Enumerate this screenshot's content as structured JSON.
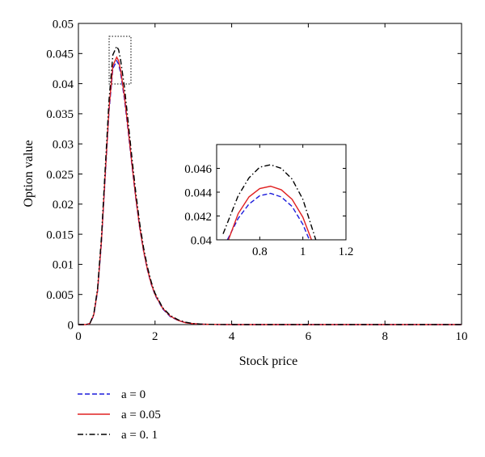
{
  "chart_data": [
    {
      "type": "line",
      "title": "",
      "xlabel": "Stock price",
      "ylabel": "Option value",
      "xlim": [
        0,
        10
      ],
      "ylim": [
        0,
        0.05
      ],
      "xticks": [
        "0",
        "2",
        "4",
        "6",
        "8",
        "10"
      ],
      "yticks": [
        "0",
        "0.005",
        "0.01",
        "0.015",
        "0.02",
        "0.025",
        "0.03",
        "0.035",
        "0.04",
        "0.045",
        "0.05"
      ],
      "grid": false,
      "legend_position": "below",
      "series": [
        {
          "name": "a = 0",
          "color": "#1a1adb",
          "style": "dashed",
          "x": [
            0,
            0.2,
            0.3,
            0.4,
            0.5,
            0.6,
            0.7,
            0.8,
            0.9,
            1.0,
            1.05,
            1.1,
            1.2,
            1.3,
            1.4,
            1.5,
            1.6,
            1.7,
            1.8,
            1.9,
            2.0,
            2.2,
            2.4,
            2.6,
            2.8,
            3.0,
            3.2,
            3.5,
            4.0,
            5.0,
            6.0,
            8.0,
            10.0
          ],
          "y": [
            0,
            0,
            0.0002,
            0.0015,
            0.0055,
            0.0135,
            0.0245,
            0.0355,
            0.0425,
            0.0438,
            0.0432,
            0.0418,
            0.0375,
            0.032,
            0.0262,
            0.0208,
            0.016,
            0.0122,
            0.0091,
            0.0067,
            0.0049,
            0.0026,
            0.0013,
            0.0007,
            0.0003,
            0.00015,
            7e-05,
            2e-05,
            0,
            0,
            0,
            0,
            0
          ]
        },
        {
          "name": "a = 0.05",
          "color": "#e02020",
          "style": "solid",
          "x": [
            0,
            0.2,
            0.3,
            0.4,
            0.5,
            0.6,
            0.7,
            0.8,
            0.9,
            1.0,
            1.05,
            1.1,
            1.2,
            1.3,
            1.4,
            1.5,
            1.6,
            1.7,
            1.8,
            1.9,
            2.0,
            2.2,
            2.4,
            2.6,
            2.8,
            3.0,
            3.2,
            3.5,
            4.0,
            5.0,
            6.0,
            8.0,
            10.0
          ],
          "y": [
            0,
            0,
            0.0002,
            0.0016,
            0.0057,
            0.0138,
            0.025,
            0.036,
            0.043,
            0.0444,
            0.0438,
            0.0423,
            0.038,
            0.0324,
            0.0265,
            0.021,
            0.0162,
            0.0123,
            0.0092,
            0.0068,
            0.005,
            0.0027,
            0.0014,
            0.0007,
            0.0003,
            0.00015,
            7e-05,
            2e-05,
            0,
            0,
            0,
            0,
            0
          ]
        },
        {
          "name": "a = 0. 1",
          "color": "#000000",
          "style": "dashdot",
          "x": [
            0,
            0.2,
            0.3,
            0.4,
            0.5,
            0.6,
            0.7,
            0.8,
            0.9,
            1.0,
            1.05,
            1.1,
            1.2,
            1.3,
            1.4,
            1.5,
            1.6,
            1.7,
            1.8,
            1.9,
            2.0,
            2.2,
            2.4,
            2.6,
            2.8,
            3.0,
            3.2,
            3.5,
            4.0,
            5.0,
            6.0,
            8.0,
            10.0
          ],
          "y": [
            0,
            0,
            0.0002,
            0.0017,
            0.006,
            0.0144,
            0.026,
            0.0374,
            0.0448,
            0.0462,
            0.0456,
            0.044,
            0.0395,
            0.0336,
            0.0275,
            0.0218,
            0.0168,
            0.0128,
            0.0096,
            0.0071,
            0.0052,
            0.0028,
            0.0015,
            0.0008,
            0.0004,
            0.00018,
            8e-05,
            2e-05,
            0,
            0,
            0,
            0,
            0
          ]
        }
      ]
    },
    {
      "type": "line",
      "title": "",
      "xlim": [
        0.6,
        1.2
      ],
      "ylim": [
        0.04,
        0.048
      ],
      "xticks": [
        "0.8",
        "1",
        "1.2"
      ],
      "yticks": [
        "0.04",
        "0.042",
        "0.044",
        "0.046"
      ],
      "series": [
        {
          "name": "a = 0",
          "color": "#1a1adb",
          "style": "dashed",
          "x": [
            0.65,
            0.7,
            0.75,
            0.8,
            0.85,
            0.9,
            0.95,
            1.0,
            1.03
          ],
          "y": [
            0.04,
            0.0418,
            0.043,
            0.0437,
            0.0439,
            0.0436,
            0.0428,
            0.0413,
            0.04
          ]
        },
        {
          "name": "a = 0.05",
          "color": "#e02020",
          "style": "solid",
          "x": [
            0.655,
            0.7,
            0.75,
            0.8,
            0.85,
            0.9,
            0.95,
            1.0,
            1.04
          ],
          "y": [
            0.04,
            0.0422,
            0.0436,
            0.0443,
            0.0445,
            0.0442,
            0.0434,
            0.0419,
            0.04
          ]
        },
        {
          "name": "a = 0. 1",
          "color": "#000000",
          "style": "dashdot",
          "x": [
            0.63,
            0.7,
            0.75,
            0.8,
            0.85,
            0.9,
            0.95,
            1.0,
            1.06
          ],
          "y": [
            0.0405,
            0.0437,
            0.0452,
            0.0461,
            0.0463,
            0.046,
            0.0451,
            0.0434,
            0.04
          ]
        }
      ]
    }
  ],
  "legend": {
    "items": [
      {
        "label": "a = 0",
        "color": "#1a1adb",
        "style": "dashed"
      },
      {
        "label": "a = 0.05",
        "color": "#e02020",
        "style": "solid"
      },
      {
        "label": "a = 0. 1",
        "color": "#000000",
        "style": "dashdot"
      }
    ]
  }
}
